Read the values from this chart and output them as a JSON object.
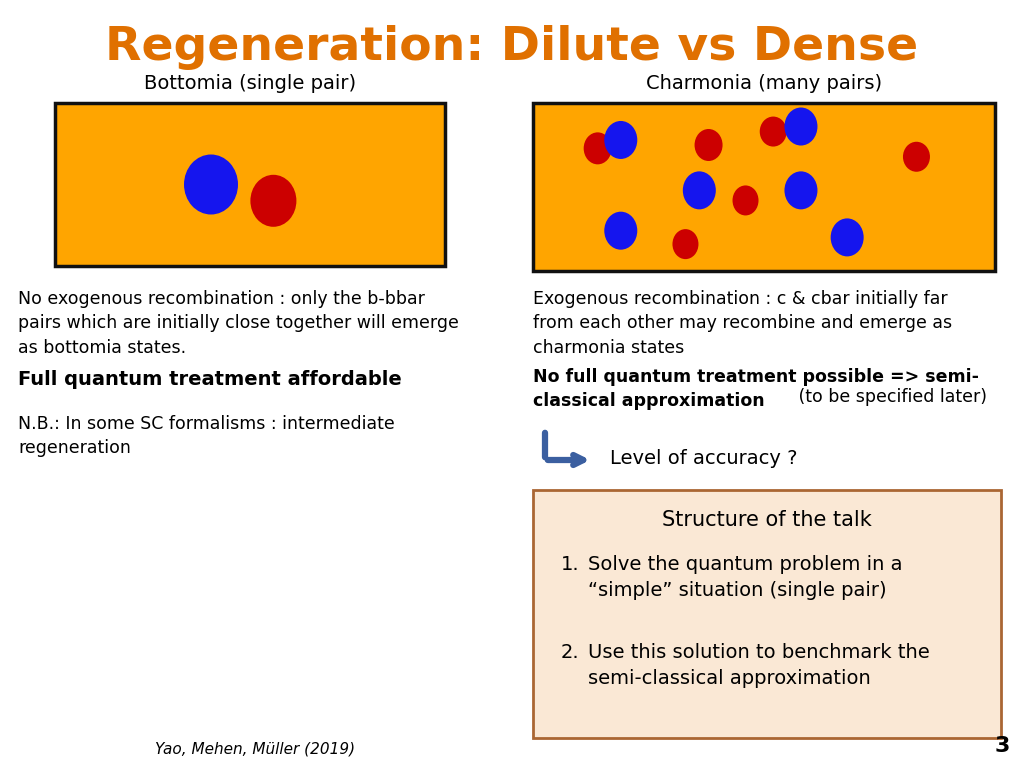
{
  "title": "Regeneration: Dilute vs Dense",
  "title_color": "#E07000",
  "title_fontsize": 34,
  "left_box_title": "Bottomia (single pair)",
  "right_box_title": "Charmonia (many pairs)",
  "box_bg_color": "#FFA500",
  "box_border_color": "#111111",
  "blue_color": "#1515EE",
  "red_color": "#CC0000",
  "left_text1": "No exogenous recombination : only the b-bbar\npairs which are initially close together will emerge\nas bottomia states.",
  "left_text2": "Full quantum treatment affordable",
  "left_text3": "N.B.: In some SC formalisms : intermediate\nregeneration",
  "right_text1": "Exogenous recombination : c & cbar initially far\nfrom each other may recombine and emerge as\ncharmonia states",
  "right_text2_bold": "No full quantum treatment possible => semi-\nclassical approximation",
  "right_text2_normal": " (to be specified later)",
  "right_text3": "Level of accuracy ?",
  "box_title": "Structure of the talk",
  "box_item1": "Solve the quantum problem in a\n“simple” situation (single pair)",
  "box_item2": "Use this solution to benchmark the\nsemi-classical approximation",
  "page_number": "3",
  "citation": "Yao, Mehen, Müller (2019)",
  "arrow_color": "#3B5FA0",
  "talk_box_bg": "#FAE8D5",
  "talk_box_border": "#AA6633"
}
